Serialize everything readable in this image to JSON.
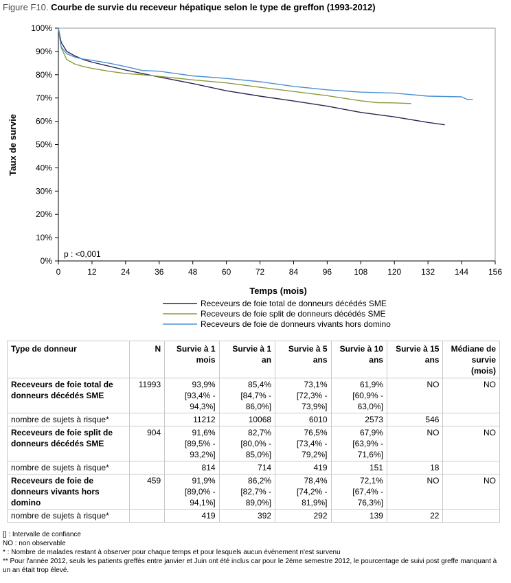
{
  "figure": {
    "label": "Figure F10.",
    "title": "Courbe de survie du receveur hépatique selon le type de greffon (1993-2012)"
  },
  "chart_data": {
    "type": "line",
    "xlabel": "Temps (mois)",
    "ylabel": "Taux de survie",
    "xlim": [
      0,
      156
    ],
    "ylim": [
      0,
      100
    ],
    "x_ticks": [
      0,
      12,
      24,
      36,
      48,
      60,
      72,
      84,
      96,
      108,
      120,
      132,
      144,
      156
    ],
    "y_ticks": [
      0,
      10,
      20,
      30,
      40,
      50,
      60,
      70,
      80,
      90,
      100
    ],
    "y_tick_labels": [
      "0%",
      "10%",
      "20%",
      "30%",
      "40%",
      "50%",
      "60%",
      "70%",
      "80%",
      "90%",
      "100%"
    ],
    "annotation": "p : <0,001",
    "legend_position": "bottom",
    "grid": false,
    "series": [
      {
        "name": "Receveurs de foie total de donneurs décédés SME",
        "color": "#2b2350",
        "x": [
          0,
          1,
          3,
          6,
          9,
          12,
          18,
          24,
          30,
          36,
          48,
          60,
          72,
          84,
          96,
          108,
          120,
          132,
          138
        ],
        "y": [
          100,
          93.9,
          90.0,
          88.0,
          86.5,
          85.4,
          83.7,
          82.0,
          80.5,
          79.0,
          76.2,
          73.1,
          70.8,
          68.7,
          66.5,
          63.8,
          61.9,
          59.5,
          58.5
        ]
      },
      {
        "name": "Receveurs de foie split de donneurs décédés SME",
        "color": "#8a9a38",
        "x": [
          0,
          1,
          3,
          6,
          9,
          12,
          18,
          24,
          30,
          36,
          48,
          60,
          72,
          84,
          96,
          108,
          114,
          120,
          126
        ],
        "y": [
          100,
          91.6,
          86.5,
          84.5,
          83.5,
          82.7,
          81.5,
          80.5,
          80.0,
          79.3,
          77.8,
          76.5,
          74.6,
          72.8,
          71.0,
          68.8,
          68.0,
          67.9,
          67.6
        ]
      },
      {
        "name": "Receveurs de foie de donneurs vivants hors domino",
        "color": "#4a8fd4",
        "x": [
          0,
          1,
          3,
          6,
          9,
          12,
          18,
          24,
          30,
          36,
          48,
          60,
          72,
          84,
          96,
          108,
          120,
          132,
          144,
          146,
          148
        ],
        "y": [
          100,
          91.9,
          89.0,
          87.5,
          86.7,
          86.2,
          85.0,
          83.5,
          81.8,
          81.5,
          79.5,
          78.4,
          77.0,
          75.0,
          73.5,
          72.5,
          72.1,
          70.8,
          70.5,
          69.4,
          69.4
        ]
      }
    ]
  },
  "table": {
    "headers": [
      "Type de donneur",
      "N",
      "Survie à 1 mois",
      "Survie à 1 an",
      "Survie à 5 ans",
      "Survie à 10 ans",
      "Survie à 15 ans",
      "Médiane de survie (mois)"
    ],
    "risk_label": "nombre de sujets à risque*",
    "groups": [
      {
        "label": "Receveurs de foie total de donneurs décédés SME",
        "n": "11993",
        "s1m": "93,9% [93,4% - 94,3%]",
        "s1y": "85,4% [84,7% - 86,0%]",
        "s5y": "73,1% [72,3% - 73,9%]",
        "s10y": "61,9% [60,9% - 63,0%]",
        "s15y": "NO",
        "median": "NO",
        "risk": [
          "11212",
          "10068",
          "6010",
          "2573",
          "546"
        ]
      },
      {
        "label": "Receveurs de foie split de donneurs décédés SME",
        "n": "904",
        "s1m": "91,6% [89,5% - 93,2%]",
        "s1y": "82,7% [80,0% - 85,0%]",
        "s5y": "76,5% [73,4% - 79,2%]",
        "s10y": "67,9% [63,9% - 71,6%]",
        "s15y": "NO",
        "median": "NO",
        "risk": [
          "814",
          "714",
          "419",
          "151",
          "18"
        ]
      },
      {
        "label": "Receveurs de foie de donneurs vivants hors domino",
        "n": "459",
        "s1m": "91,9% [89,0% - 94,1%]",
        "s1y": "86,2% [82,7% - 89,0%]",
        "s5y": "78,4% [74,2% - 81,9%]",
        "s10y": "72,1% [67,4% - 76,3%]",
        "s15y": "NO",
        "median": "NO",
        "risk": [
          "419",
          "392",
          "292",
          "139",
          "22"
        ]
      }
    ]
  },
  "footnotes": [
    "[] : Intervalle de confiance",
    "NO : non observable",
    "* : Nombre de malades restant à observer pour chaque temps et pour lesquels aucun évènement n'est survenu",
    "** Pour l'année 2012, seuls les patients greffés entre janvier et Juin ont été inclus car pour le 2ème semestre 2012, le pourcentage de suivi post greffe manquant à un an était trop élevé."
  ]
}
